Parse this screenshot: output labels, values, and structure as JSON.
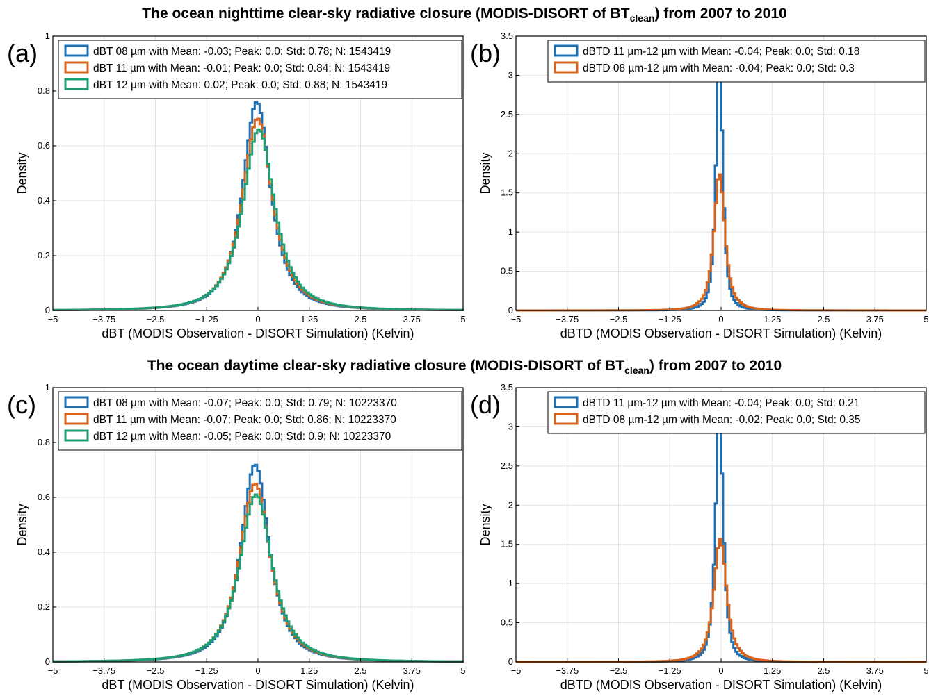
{
  "figure": {
    "titles": [
      {
        "before": "The ocean nighttime clear-sky radiative closure (MODIS-DISORT of BT",
        "sub": "clean",
        "after": ") from 2007 to 2010"
      },
      {
        "before": "The ocean daytime clear-sky radiative closure (MODIS-DISORT of BT",
        "sub": "clean",
        "after": ") from 2007 to 2010"
      }
    ]
  },
  "chart_data": [
    {
      "type": "line",
      "panel_label": "(a)",
      "xlabel": "dBT (MODIS Observation - DISORT Simulation) (Kelvin)",
      "ylabel": "Density",
      "xlim": [
        -5,
        5
      ],
      "ylim": [
        0,
        1
      ],
      "xticks": [
        "-5",
        "-3.75",
        "-2.5",
        "-1.25",
        "0",
        "1.25",
        "2.5",
        "3.75",
        "5"
      ],
      "yticks": [
        "0",
        "0.2",
        "0.4",
        "0.6",
        "0.8",
        "1"
      ],
      "grid": true,
      "legend_position": "top-right",
      "series": [
        {
          "name": "dBT 08 µm with Mean: -0.03; Peak: 0.0; Std: 0.78; N: 1543419",
          "color": "#1f6fb4",
          "mean": -0.03,
          "std": 0.78,
          "peak": 0.76
        },
        {
          "name": "dBT 11 µm with Mean: -0.01; Peak: 0.0; Std: 0.84; N: 1543419",
          "color": "#d8641b",
          "mean": -0.01,
          "std": 0.84,
          "peak": 0.7
        },
        {
          "name": "dBT 12 µm with Mean: 0.02; Peak: 0.0; Std: 0.88; N: 1543419",
          "color": "#1e9e74",
          "mean": 0.02,
          "std": 0.88,
          "peak": 0.66
        }
      ]
    },
    {
      "type": "line",
      "panel_label": "(b)",
      "xlabel": "dBTD (MODIS Observation - DISORT Simulation) (Kelvin)",
      "ylabel": "Density",
      "xlim": [
        -5,
        5
      ],
      "ylim": [
        0,
        3.5
      ],
      "xticks": [
        "-5",
        "-3.75",
        "-2.5",
        "-1.25",
        "0",
        "1.25",
        "2.5",
        "3.75",
        "5"
      ],
      "yticks": [
        "0",
        "0.5",
        "1",
        "1.5",
        "2",
        "2.5",
        "3",
        "3.5"
      ],
      "grid": true,
      "legend_position": "top-right",
      "series": [
        {
          "name": "dBTD 11 µm-12 µm with Mean: -0.04; Peak: 0.0; Std: 0.18",
          "color": "#1f6fb4",
          "mean": -0.04,
          "std": 0.18,
          "peak": 3.35
        },
        {
          "name": "dBTD 08 µm-12 µm with Mean: -0.04; Peak: 0.0; Std: 0.3",
          "color": "#d8641b",
          "mean": -0.04,
          "std": 0.3,
          "peak": 1.75
        }
      ]
    },
    {
      "type": "line",
      "panel_label": "(c)",
      "xlabel": "dBT (MODIS Observation - DISORT Simulation) (Kelvin)",
      "ylabel": "Density",
      "xlim": [
        -5,
        5
      ],
      "ylim": [
        0,
        1
      ],
      "xticks": [
        "-5",
        "-3.75",
        "-2.5",
        "-1.25",
        "0",
        "1.25",
        "2.5",
        "3.75",
        "5"
      ],
      "yticks": [
        "0",
        "0.2",
        "0.4",
        "0.6",
        "0.8",
        "1"
      ],
      "grid": true,
      "legend_position": "top-right",
      "series": [
        {
          "name": "dBT 08 µm with Mean: -0.07; Peak: 0.0; Std: 0.79; N: 10223370",
          "color": "#1f6fb4",
          "mean": -0.07,
          "std": 0.79,
          "peak": 0.72
        },
        {
          "name": "dBT 11 µm with Mean: -0.07; Peak: 0.0; Std: 0.86; N: 10223370",
          "color": "#d8641b",
          "mean": -0.07,
          "std": 0.86,
          "peak": 0.65
        },
        {
          "name": "dBT 12 µm with Mean: -0.05; Peak: 0.0; Std: 0.9; N: 10223370",
          "color": "#1e9e74",
          "mean": -0.05,
          "std": 0.9,
          "peak": 0.61
        }
      ]
    },
    {
      "type": "line",
      "panel_label": "(d)",
      "xlabel": "dBTD (MODIS Observation - DISORT Simulation) (Kelvin)",
      "ylabel": "Density",
      "xlim": [
        -5,
        5
      ],
      "ylim": [
        0,
        3.5
      ],
      "xticks": [
        "-5",
        "-3.75",
        "-2.5",
        "-1.25",
        "0",
        "1.25",
        "2.5",
        "3.75",
        "5"
      ],
      "yticks": [
        "0",
        "0.5",
        "1",
        "1.5",
        "2",
        "2.5",
        "3",
        "3.5"
      ],
      "grid": true,
      "legend_position": "top-right",
      "series": [
        {
          "name": "dBTD 11 µm-12 µm with Mean: -0.04; Peak: 0.0; Std: 0.21",
          "color": "#1f6fb4",
          "mean": -0.04,
          "std": 0.21,
          "peak": 3.2
        },
        {
          "name": "dBTD 08 µm-12 µm with Mean: -0.02; Peak: 0.0; Std: 0.35",
          "color": "#d8641b",
          "mean": -0.02,
          "std": 0.35,
          "peak": 1.57
        }
      ]
    }
  ]
}
